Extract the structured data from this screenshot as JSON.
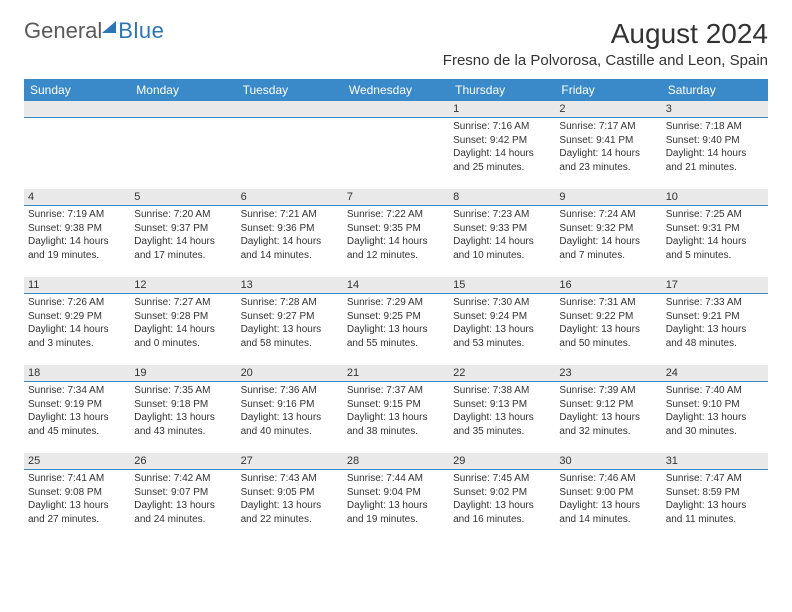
{
  "logo": {
    "text_general": "General",
    "text_blue": "Blue"
  },
  "title": {
    "month": "August 2024",
    "location": "Fresno de la Polvorosa, Castille and Leon, Spain"
  },
  "colors": {
    "header_bg": "#3a8ac9",
    "header_text": "#ffffff",
    "daynum_bg": "#e9e9e9",
    "daynum_border": "#3a8ac9",
    "body_text": "#333333",
    "logo_blue": "#2e75b6",
    "logo_gray": "#5a5a5a",
    "page_bg": "#ffffff"
  },
  "day_headers": [
    "Sunday",
    "Monday",
    "Tuesday",
    "Wednesday",
    "Thursday",
    "Friday",
    "Saturday"
  ],
  "weeks": [
    [
      null,
      null,
      null,
      null,
      {
        "n": "1",
        "sr": "Sunrise: 7:16 AM",
        "ss": "Sunset: 9:42 PM",
        "dl": "Daylight: 14 hours and 25 minutes."
      },
      {
        "n": "2",
        "sr": "Sunrise: 7:17 AM",
        "ss": "Sunset: 9:41 PM",
        "dl": "Daylight: 14 hours and 23 minutes."
      },
      {
        "n": "3",
        "sr": "Sunrise: 7:18 AM",
        "ss": "Sunset: 9:40 PM",
        "dl": "Daylight: 14 hours and 21 minutes."
      }
    ],
    [
      {
        "n": "4",
        "sr": "Sunrise: 7:19 AM",
        "ss": "Sunset: 9:38 PM",
        "dl": "Daylight: 14 hours and 19 minutes."
      },
      {
        "n": "5",
        "sr": "Sunrise: 7:20 AM",
        "ss": "Sunset: 9:37 PM",
        "dl": "Daylight: 14 hours and 17 minutes."
      },
      {
        "n": "6",
        "sr": "Sunrise: 7:21 AM",
        "ss": "Sunset: 9:36 PM",
        "dl": "Daylight: 14 hours and 14 minutes."
      },
      {
        "n": "7",
        "sr": "Sunrise: 7:22 AM",
        "ss": "Sunset: 9:35 PM",
        "dl": "Daylight: 14 hours and 12 minutes."
      },
      {
        "n": "8",
        "sr": "Sunrise: 7:23 AM",
        "ss": "Sunset: 9:33 PM",
        "dl": "Daylight: 14 hours and 10 minutes."
      },
      {
        "n": "9",
        "sr": "Sunrise: 7:24 AM",
        "ss": "Sunset: 9:32 PM",
        "dl": "Daylight: 14 hours and 7 minutes."
      },
      {
        "n": "10",
        "sr": "Sunrise: 7:25 AM",
        "ss": "Sunset: 9:31 PM",
        "dl": "Daylight: 14 hours and 5 minutes."
      }
    ],
    [
      {
        "n": "11",
        "sr": "Sunrise: 7:26 AM",
        "ss": "Sunset: 9:29 PM",
        "dl": "Daylight: 14 hours and 3 minutes."
      },
      {
        "n": "12",
        "sr": "Sunrise: 7:27 AM",
        "ss": "Sunset: 9:28 PM",
        "dl": "Daylight: 14 hours and 0 minutes."
      },
      {
        "n": "13",
        "sr": "Sunrise: 7:28 AM",
        "ss": "Sunset: 9:27 PM",
        "dl": "Daylight: 13 hours and 58 minutes."
      },
      {
        "n": "14",
        "sr": "Sunrise: 7:29 AM",
        "ss": "Sunset: 9:25 PM",
        "dl": "Daylight: 13 hours and 55 minutes."
      },
      {
        "n": "15",
        "sr": "Sunrise: 7:30 AM",
        "ss": "Sunset: 9:24 PM",
        "dl": "Daylight: 13 hours and 53 minutes."
      },
      {
        "n": "16",
        "sr": "Sunrise: 7:31 AM",
        "ss": "Sunset: 9:22 PM",
        "dl": "Daylight: 13 hours and 50 minutes."
      },
      {
        "n": "17",
        "sr": "Sunrise: 7:33 AM",
        "ss": "Sunset: 9:21 PM",
        "dl": "Daylight: 13 hours and 48 minutes."
      }
    ],
    [
      {
        "n": "18",
        "sr": "Sunrise: 7:34 AM",
        "ss": "Sunset: 9:19 PM",
        "dl": "Daylight: 13 hours and 45 minutes."
      },
      {
        "n": "19",
        "sr": "Sunrise: 7:35 AM",
        "ss": "Sunset: 9:18 PM",
        "dl": "Daylight: 13 hours and 43 minutes."
      },
      {
        "n": "20",
        "sr": "Sunrise: 7:36 AM",
        "ss": "Sunset: 9:16 PM",
        "dl": "Daylight: 13 hours and 40 minutes."
      },
      {
        "n": "21",
        "sr": "Sunrise: 7:37 AM",
        "ss": "Sunset: 9:15 PM",
        "dl": "Daylight: 13 hours and 38 minutes."
      },
      {
        "n": "22",
        "sr": "Sunrise: 7:38 AM",
        "ss": "Sunset: 9:13 PM",
        "dl": "Daylight: 13 hours and 35 minutes."
      },
      {
        "n": "23",
        "sr": "Sunrise: 7:39 AM",
        "ss": "Sunset: 9:12 PM",
        "dl": "Daylight: 13 hours and 32 minutes."
      },
      {
        "n": "24",
        "sr": "Sunrise: 7:40 AM",
        "ss": "Sunset: 9:10 PM",
        "dl": "Daylight: 13 hours and 30 minutes."
      }
    ],
    [
      {
        "n": "25",
        "sr": "Sunrise: 7:41 AM",
        "ss": "Sunset: 9:08 PM",
        "dl": "Daylight: 13 hours and 27 minutes."
      },
      {
        "n": "26",
        "sr": "Sunrise: 7:42 AM",
        "ss": "Sunset: 9:07 PM",
        "dl": "Daylight: 13 hours and 24 minutes."
      },
      {
        "n": "27",
        "sr": "Sunrise: 7:43 AM",
        "ss": "Sunset: 9:05 PM",
        "dl": "Daylight: 13 hours and 22 minutes."
      },
      {
        "n": "28",
        "sr": "Sunrise: 7:44 AM",
        "ss": "Sunset: 9:04 PM",
        "dl": "Daylight: 13 hours and 19 minutes."
      },
      {
        "n": "29",
        "sr": "Sunrise: 7:45 AM",
        "ss": "Sunset: 9:02 PM",
        "dl": "Daylight: 13 hours and 16 minutes."
      },
      {
        "n": "30",
        "sr": "Sunrise: 7:46 AM",
        "ss": "Sunset: 9:00 PM",
        "dl": "Daylight: 13 hours and 14 minutes."
      },
      {
        "n": "31",
        "sr": "Sunrise: 7:47 AM",
        "ss": "Sunset: 8:59 PM",
        "dl": "Daylight: 13 hours and 11 minutes."
      }
    ]
  ]
}
